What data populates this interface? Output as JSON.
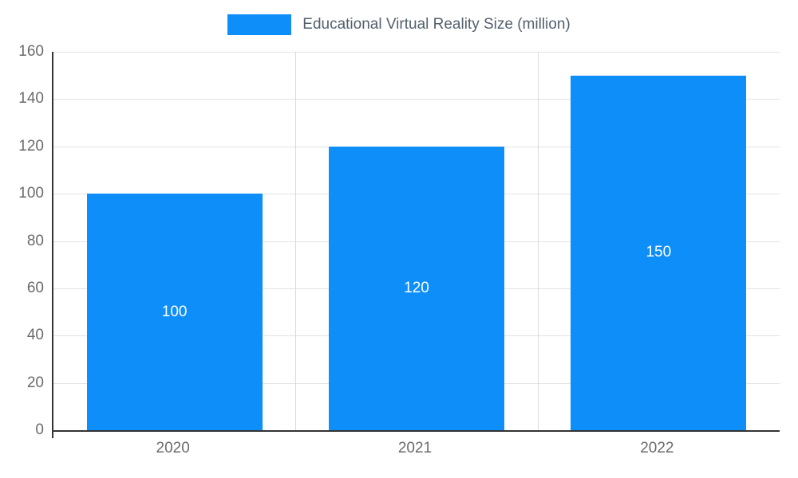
{
  "chart": {
    "legend_label": "Educational Virtual Reality Size (million)",
    "bar_color": "#0d8ef8",
    "axis_line_color": "#333333",
    "gridline_color": "#e3e3e3",
    "tick_label_color": "#6b6b6b",
    "legend_text_color": "#53606e",
    "bar_label_color": "#ffffff"
  },
  "chart_data": {
    "type": "bar",
    "categories": [
      "2020",
      "2021",
      "2022"
    ],
    "values": [
      100,
      120,
      150
    ],
    "bar_labels": [
      "100",
      "120",
      "150"
    ],
    "title": "Educational Virtual Reality Size (million)",
    "xlabel": "",
    "ylabel": "",
    "ylim": [
      0,
      160
    ],
    "ytick_step": 20,
    "grid": true,
    "legend_position": "top"
  }
}
